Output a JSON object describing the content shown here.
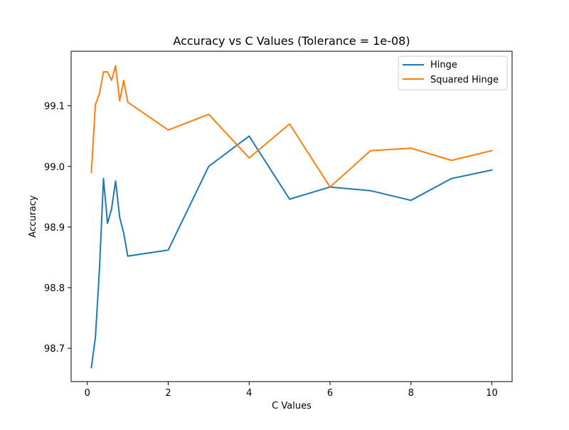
{
  "chart_data": {
    "type": "line",
    "title": "Accuracy vs C Values (Tolerance = 1e-08)",
    "xlabel": "C Values",
    "ylabel": "Accuracy",
    "xlim": [
      -0.4,
      10.5
    ],
    "ylim": [
      98.645,
      99.19
    ],
    "xticks": [
      0,
      2,
      4,
      6,
      8,
      10
    ],
    "xtick_labels": [
      "0",
      "2",
      "4",
      "6",
      "8",
      "10"
    ],
    "yticks": [
      98.7,
      98.8,
      98.9,
      99.0,
      99.1
    ],
    "ytick_labels": [
      "98.7",
      "98.8",
      "98.9",
      "99.0",
      "99.1"
    ],
    "grid": false,
    "legend_position": "upper right",
    "x": [
      0.1,
      0.2,
      0.3,
      0.4,
      0.5,
      0.6,
      0.7,
      0.8,
      0.9,
      1,
      2,
      3,
      4,
      5,
      6,
      7,
      8,
      9,
      10
    ],
    "series": [
      {
        "name": "Hinge",
        "color": "#1f77b4",
        "values": [
          98.668,
          98.718,
          98.83,
          98.98,
          98.906,
          98.93,
          98.976,
          98.916,
          98.89,
          98.852,
          98.862,
          99.0,
          99.05,
          98.946,
          98.966,
          98.96,
          98.944,
          98.98,
          98.994
        ]
      },
      {
        "name": "Squared Hinge",
        "color": "#ff7f0e",
        "values": [
          98.99,
          99.102,
          99.12,
          99.156,
          99.156,
          99.142,
          99.166,
          99.108,
          99.142,
          99.106,
          99.06,
          99.086,
          99.014,
          99.07,
          98.966,
          99.026,
          99.03,
          99.01,
          99.026
        ]
      }
    ]
  }
}
